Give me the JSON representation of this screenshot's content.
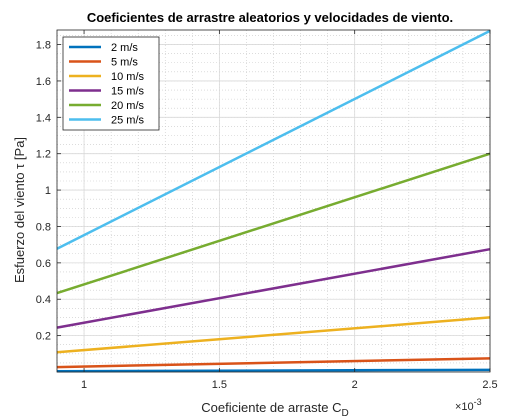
{
  "chart_data": {
    "type": "line",
    "title": "Coeficientes de arrastre aleatorios y velocidades de viento.",
    "xlabel": "Coeficiente de arraste C",
    "xlabel_sub": "D",
    "ylabel": "Esfuerzo del viento τ [Pa]",
    "x_exponent_base": "×10",
    "x_exponent_power": "-3",
    "xlim": [
      0.9,
      2.5
    ],
    "ylim": [
      0,
      1.88
    ],
    "xticks": [
      1,
      1.5,
      2,
      2.5
    ],
    "yticks": [
      0.2,
      0.4,
      0.6,
      0.8,
      1,
      1.2,
      1.4,
      1.6,
      1.8
    ],
    "grid": true,
    "minor_grid": true,
    "legend_position": "top-left",
    "x": [
      0.9,
      2.5
    ],
    "series": [
      {
        "name": "2 m/s",
        "color": "#0072BD",
        "values": [
          0.0043,
          0.012
        ]
      },
      {
        "name": "5 m/s",
        "color": "#D95319",
        "values": [
          0.0271,
          0.075
        ]
      },
      {
        "name": "10 m/s",
        "color": "#EDB120",
        "values": [
          0.1084,
          0.3
        ]
      },
      {
        "name": "15 m/s",
        "color": "#7E2F8E",
        "values": [
          0.2439,
          0.675
        ]
      },
      {
        "name": "20 m/s",
        "color": "#77AC30",
        "values": [
          0.4336,
          1.2
        ]
      },
      {
        "name": "25 m/s",
        "color": "#4DBEEE",
        "values": [
          0.6775,
          1.875
        ]
      }
    ]
  }
}
